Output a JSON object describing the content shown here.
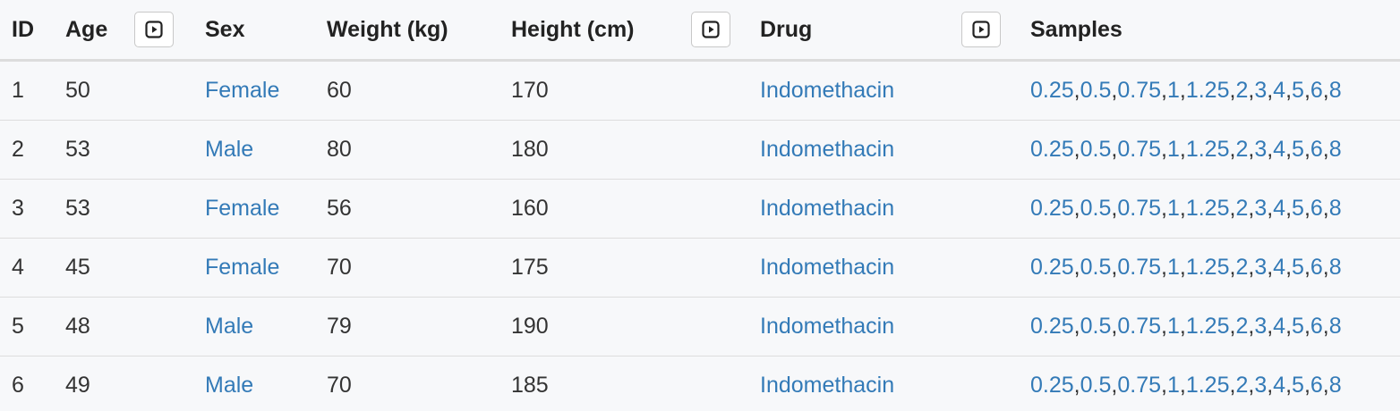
{
  "table": {
    "columns": {
      "id": "ID",
      "age": "Age",
      "sex": "Sex",
      "weight": "Weight (kg)",
      "height": "Height (cm)",
      "drug": "Drug",
      "samples": "Samples"
    },
    "expand_icon": "play-square-icon",
    "rows": [
      {
        "id": "1",
        "age": "50",
        "sex": "Female",
        "weight": "60",
        "height": "170",
        "drug": "Indomethacin",
        "samples": [
          "0.25",
          "0.5",
          "0.75",
          "1",
          "1.25",
          "2",
          "3",
          "4",
          "5",
          "6",
          "8"
        ]
      },
      {
        "id": "2",
        "age": "53",
        "sex": "Male",
        "weight": "80",
        "height": "180",
        "drug": "Indomethacin",
        "samples": [
          "0.25",
          "0.5",
          "0.75",
          "1",
          "1.25",
          "2",
          "3",
          "4",
          "5",
          "6",
          "8"
        ]
      },
      {
        "id": "3",
        "age": "53",
        "sex": "Female",
        "weight": "56",
        "height": "160",
        "drug": "Indomethacin",
        "samples": [
          "0.25",
          "0.5",
          "0.75",
          "1",
          "1.25",
          "2",
          "3",
          "4",
          "5",
          "6",
          "8"
        ]
      },
      {
        "id": "4",
        "age": "45",
        "sex": "Female",
        "weight": "70",
        "height": "175",
        "drug": "Indomethacin",
        "samples": [
          "0.25",
          "0.5",
          "0.75",
          "1",
          "1.25",
          "2",
          "3",
          "4",
          "5",
          "6",
          "8"
        ]
      },
      {
        "id": "5",
        "age": "48",
        "sex": "Male",
        "weight": "79",
        "height": "190",
        "drug": "Indomethacin",
        "samples": [
          "0.25",
          "0.5",
          "0.75",
          "1",
          "1.25",
          "2",
          "3",
          "4",
          "5",
          "6",
          "8"
        ]
      },
      {
        "id": "6",
        "age": "49",
        "sex": "Male",
        "weight": "70",
        "height": "185",
        "drug": "Indomethacin",
        "samples": [
          "0.25",
          "0.5",
          "0.75",
          "1",
          "1.25",
          "2",
          "3",
          "4",
          "5",
          "6",
          "8"
        ]
      }
    ]
  },
  "colors": {
    "link": "#337ab7",
    "text": "#333333",
    "background": "#f7f8fa"
  }
}
